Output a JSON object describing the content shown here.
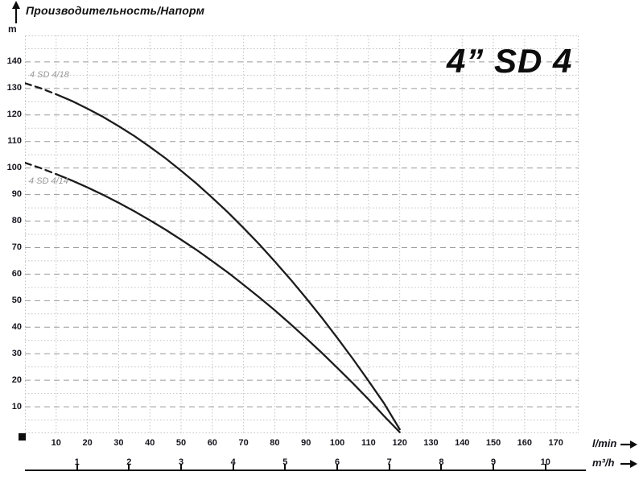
{
  "header": {
    "title": "Производительность/Напорм",
    "y_unit": "m"
  },
  "chart_data": {
    "type": "line",
    "title": "4” SD 4",
    "grid": "on",
    "y_axis": {
      "unit": "m",
      "min": 0,
      "max": 150,
      "major_step": 10,
      "minor_step": 5,
      "tick_labels": [
        10,
        20,
        30,
        40,
        50,
        60,
        70,
        80,
        90,
        100,
        110,
        120,
        130,
        140
      ]
    },
    "x_axis": {
      "unit": "l/min",
      "min": 0,
      "max": 177.3,
      "tick_labels": [
        10,
        20,
        30,
        40,
        50,
        60,
        70,
        80,
        90,
        100,
        110,
        120,
        130,
        140,
        150,
        160,
        170
      ]
    },
    "x_axis_secondary": {
      "unit": "m³/h",
      "lmin_per_unit": 16.6667,
      "tick_labels": [
        1,
        2,
        3,
        4,
        5,
        6,
        7,
        8,
        9,
        10
      ]
    },
    "series": [
      {
        "name": "4 SD 4/18",
        "dash_until_q": 10,
        "points": [
          [
            0,
            132
          ],
          [
            5,
            130.1
          ],
          [
            10,
            127.8
          ],
          [
            15,
            125.3
          ],
          [
            20,
            122.4
          ],
          [
            25,
            119.3
          ],
          [
            30,
            115.8
          ],
          [
            35,
            112.1
          ],
          [
            40,
            108
          ],
          [
            45,
            103.7
          ],
          [
            50,
            99
          ],
          [
            55,
            94.1
          ],
          [
            60,
            88.8
          ],
          [
            65,
            83.3
          ],
          [
            70,
            77.4
          ],
          [
            75,
            71.3
          ],
          [
            80,
            64.8
          ],
          [
            85,
            58.1
          ],
          [
            90,
            51
          ],
          [
            95,
            43.7
          ],
          [
            100,
            36
          ],
          [
            105,
            28.1
          ],
          [
            110,
            19.8
          ],
          [
            115,
            11.3
          ],
          [
            120,
            1.5
          ]
        ]
      },
      {
        "name": "4 SD 4/14",
        "dash_until_q": 10,
        "points": [
          [
            0,
            102
          ],
          [
            5,
            100
          ],
          [
            10,
            97.7
          ],
          [
            15,
            95.3
          ],
          [
            20,
            92.7
          ],
          [
            25,
            89.9
          ],
          [
            30,
            86.9
          ],
          [
            35,
            83.7
          ],
          [
            40,
            80.3
          ],
          [
            45,
            76.8
          ],
          [
            50,
            73
          ],
          [
            55,
            69.1
          ],
          [
            60,
            64.9
          ],
          [
            65,
            60.6
          ],
          [
            70,
            56
          ],
          [
            75,
            51.3
          ],
          [
            80,
            46.4
          ],
          [
            85,
            41.2
          ],
          [
            90,
            35.9
          ],
          [
            95,
            30.4
          ],
          [
            100,
            24.7
          ],
          [
            105,
            18.9
          ],
          [
            110,
            12.8
          ],
          [
            115,
            6.5
          ],
          [
            120,
            0.4
          ]
        ]
      }
    ],
    "colors": {
      "curve": "#1c1c1c",
      "grid_major": "#9a9a9a",
      "grid_minor": "#c2c2c2",
      "tick_text": "#15151e",
      "curve_label": "#9b9b9b"
    }
  }
}
